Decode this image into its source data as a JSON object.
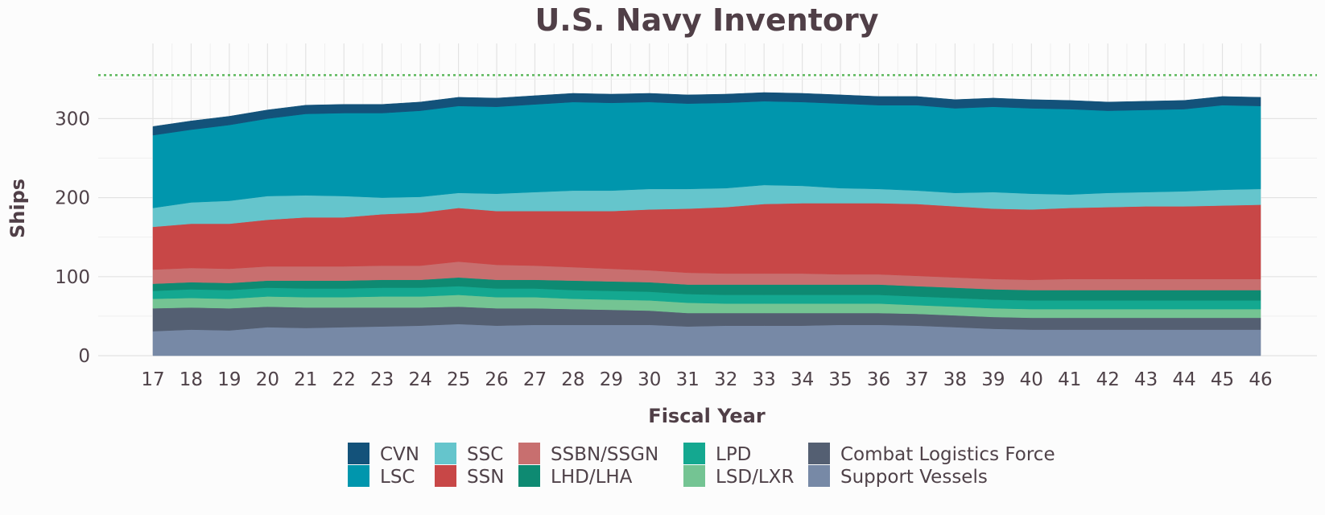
{
  "chart_data": {
    "type": "area",
    "stacked": true,
    "title": "U.S. Navy Inventory",
    "xlabel": "Fiscal Year",
    "ylabel": "Ships",
    "x": [
      "17",
      "18",
      "19",
      "20",
      "21",
      "22",
      "23",
      "24",
      "25",
      "26",
      "27",
      "28",
      "29",
      "30",
      "31",
      "32",
      "33",
      "34",
      "35",
      "36",
      "37",
      "38",
      "39",
      "40",
      "41",
      "42",
      "43",
      "44",
      "45",
      "46"
    ],
    "ylim": [
      0,
      370
    ],
    "yticks": [
      0,
      100,
      200,
      300
    ],
    "reference_line": {
      "y": 355,
      "color": "#5cb85c",
      "style": "dotted"
    },
    "grid": true,
    "legend_position": "bottom",
    "series": [
      {
        "name": "Support Vessels",
        "color": "#7789a6",
        "values": [
          31,
          33,
          32,
          36,
          35,
          36,
          37,
          38,
          40,
          38,
          39,
          39,
          39,
          39,
          37,
          38,
          38,
          38,
          39,
          39,
          38,
          36,
          34,
          33,
          33,
          33,
          33,
          33,
          33,
          33
        ]
      },
      {
        "name": "Combat Logistics Force",
        "color": "#545f72",
        "values": [
          29,
          28,
          28,
          26,
          26,
          25,
          24,
          23,
          22,
          22,
          21,
          20,
          19,
          18,
          17,
          16,
          16,
          16,
          15,
          15,
          15,
          15,
          15,
          15,
          15,
          15,
          15,
          15,
          15,
          15
        ]
      },
      {
        "name": "LSD/LXR",
        "color": "#74c493",
        "values": [
          12,
          12,
          12,
          13,
          13,
          13,
          14,
          14,
          15,
          14,
          14,
          13,
          13,
          13,
          13,
          12,
          12,
          12,
          12,
          12,
          11,
          11,
          11,
          11,
          11,
          11,
          11,
          11,
          11,
          11
        ]
      },
      {
        "name": "LPD",
        "color": "#14a890",
        "values": [
          10,
          11,
          11,
          11,
          11,
          11,
          11,
          11,
          11,
          11,
          11,
          11,
          11,
          11,
          11,
          11,
          11,
          11,
          11,
          11,
          11,
          11,
          11,
          11,
          11,
          11,
          11,
          11,
          11,
          11
        ]
      },
      {
        "name": "LHD/LHA",
        "color": "#0e8a72",
        "values": [
          9,
          9,
          9,
          9,
          10,
          10,
          10,
          10,
          11,
          11,
          11,
          12,
          12,
          12,
          12,
          13,
          13,
          13,
          13,
          13,
          13,
          13,
          13,
          13,
          13,
          13,
          13,
          13,
          13,
          13
        ]
      },
      {
        "name": "SSBN/SSGN",
        "color": "#c86f6f",
        "values": [
          18,
          18,
          18,
          18,
          18,
          18,
          18,
          18,
          20,
          19,
          18,
          17,
          16,
          15,
          15,
          14,
          14,
          14,
          13,
          13,
          13,
          13,
          13,
          13,
          14,
          14,
          14,
          14,
          14,
          14
        ]
      },
      {
        "name": "SSN",
        "color": "#c84747",
        "values": [
          54,
          56,
          57,
          59,
          62,
          62,
          65,
          67,
          68,
          68,
          69,
          71,
          73,
          77,
          81,
          84,
          88,
          89,
          90,
          90,
          91,
          90,
          89,
          89,
          90,
          91,
          92,
          92,
          93,
          94
        ]
      },
      {
        "name": "SSC",
        "color": "#65c5cc",
        "values": [
          24,
          27,
          29,
          30,
          28,
          27,
          21,
          20,
          19,
          22,
          24,
          26,
          26,
          26,
          25,
          24,
          24,
          22,
          19,
          18,
          17,
          17,
          21,
          20,
          17,
          18,
          18,
          19,
          20,
          20
        ]
      },
      {
        "name": "LSC",
        "color": "#0096ad",
        "values": [
          92,
          92,
          96,
          98,
          103,
          105,
          107,
          109,
          110,
          110,
          111,
          112,
          111,
          110,
          108,
          108,
          106,
          106,
          107,
          106,
          108,
          107,
          108,
          108,
          108,
          104,
          104,
          104,
          107,
          105
        ]
      },
      {
        "name": "CVN",
        "color": "#13527a",
        "values": [
          11,
          11,
          11,
          11,
          11,
          11,
          11,
          11,
          11,
          11,
          11,
          11,
          11,
          11,
          11,
          11,
          11,
          11,
          11,
          11,
          11,
          11,
          11,
          11,
          11,
          11,
          11,
          11,
          11,
          11
        ]
      }
    ],
    "legend_order": [
      "CVN",
      "LSC",
      "SSC",
      "SSN",
      "SSBN/SSGN",
      "LHD/LHA",
      "LPD",
      "LSD/LXR",
      "Combat Logistics Force",
      "Support Vessels"
    ]
  }
}
